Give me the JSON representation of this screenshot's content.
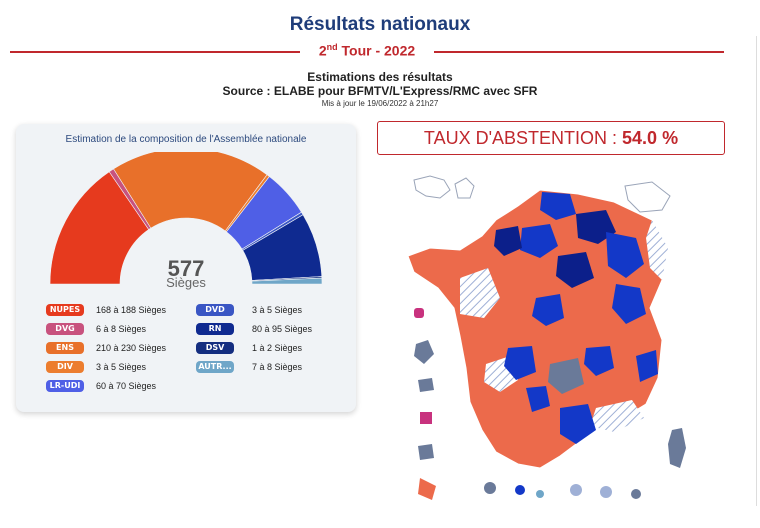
{
  "header": {
    "title": "Résultats nationaux",
    "round_number": "2",
    "round_suffix": "nd",
    "round_rest": " Tour - 2022"
  },
  "estimates": {
    "title": "Estimations des résultats",
    "source": "Source : ELABE pour BFMTV/L'Express/RMC avec SFR",
    "updated": "Mis à jour le 19/06/2022 à 21h27"
  },
  "assembly": {
    "title": "Estimation de la composition de l'Assemblée nationale",
    "total_seats": "577",
    "total_label": "Sièges",
    "blocs": [
      {
        "label": "NUPES",
        "seats": "168 à 188 Sièges",
        "color": "#e63a1e",
        "mid": 178
      },
      {
        "label": "DVG",
        "seats": "6 à 8 Sièges",
        "color": "#c8527e",
        "mid": 7
      },
      {
        "label": "ENS",
        "seats": "210 à 230 Sièges",
        "color": "#e8702a",
        "mid": 220
      },
      {
        "label": "DIV",
        "seats": "3 à 5 Sièges",
        "color": "#ec7d2e",
        "mid": 4
      },
      {
        "label": "LR-UDI",
        "seats": "60 à 70 Sièges",
        "color": "#4f5fe6",
        "mid": 65
      },
      {
        "label": "DVD",
        "seats": "3 à 5 Sièges",
        "color": "#3a56c4",
        "mid": 4
      },
      {
        "label": "RN",
        "seats": "80 à 95 Sièges",
        "color": "#0f2a90",
        "mid": 88
      },
      {
        "label": "DSV",
        "seats": "1 à 2 Sièges",
        "color": "#142e80",
        "mid": 2
      },
      {
        "label": "AUTR...",
        "seats": "7 à 8 Sièges",
        "color": "#6fa6c8",
        "mid": 8
      }
    ]
  },
  "abstention": {
    "label": "TAUX D'ABSTENTION : ",
    "value": "54.0 %"
  },
  "colors": {
    "accent": "#c0282d",
    "title_blue": "#1f3d7a",
    "map_orange": "#ec6a4b",
    "map_blue": "#1338c8",
    "map_navy": "#0c1f8a",
    "map_grey": "#6a7a99"
  }
}
